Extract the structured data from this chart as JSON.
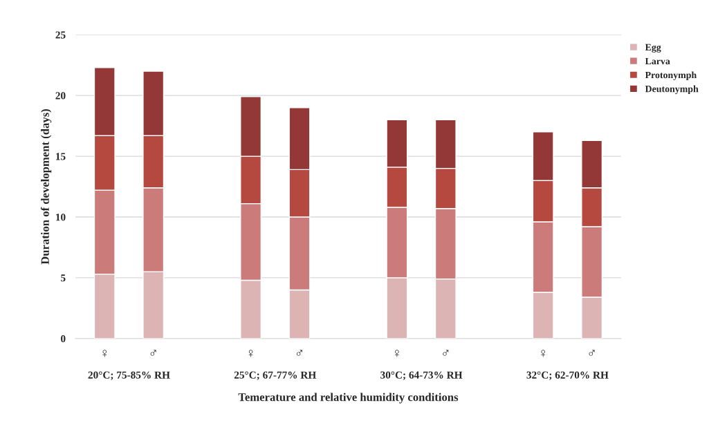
{
  "chart_data": {
    "type": "bar",
    "stacked": true,
    "categories": [
      "♀",
      "♂",
      null,
      "♀",
      "♂",
      null,
      "♀",
      "♂",
      null,
      "♀",
      "♂"
    ],
    "series": [
      {
        "name": "Egg",
        "color": "#dcb4b3",
        "values": [
          5.3,
          5.5,
          null,
          4.8,
          4.0,
          null,
          5.0,
          4.9,
          null,
          3.8,
          3.4
        ]
      },
      {
        "name": "Larva",
        "color": "#cc7b7b",
        "values": [
          6.9,
          6.9,
          null,
          6.3,
          6.0,
          null,
          5.8,
          5.8,
          null,
          5.8,
          5.8
        ]
      },
      {
        "name": "Protonymph",
        "color": "#b5483f",
        "values": [
          4.5,
          4.3,
          null,
          3.9,
          3.9,
          null,
          3.3,
          3.3,
          null,
          3.4,
          3.2
        ]
      },
      {
        "name": "Deutonymph",
        "color": "#943737",
        "values": [
          5.6,
          5.3,
          null,
          4.9,
          5.1,
          null,
          3.9,
          4.0,
          null,
          4.0,
          3.9
        ]
      }
    ],
    "ylim": [
      0,
      25
    ],
    "yticks": [
      0,
      5,
      10,
      15,
      20,
      25
    ],
    "ylabel": "Duration of development (days)",
    "xlabel": "Temerature and relative humidity conditions",
    "annotations": [
      "20°C; 75-85% RH",
      "25°C; 67-77% RH",
      "30°C; 64-73% RH",
      "32°C; 62-70% RH"
    ],
    "grid": "y",
    "legend": "top right"
  }
}
